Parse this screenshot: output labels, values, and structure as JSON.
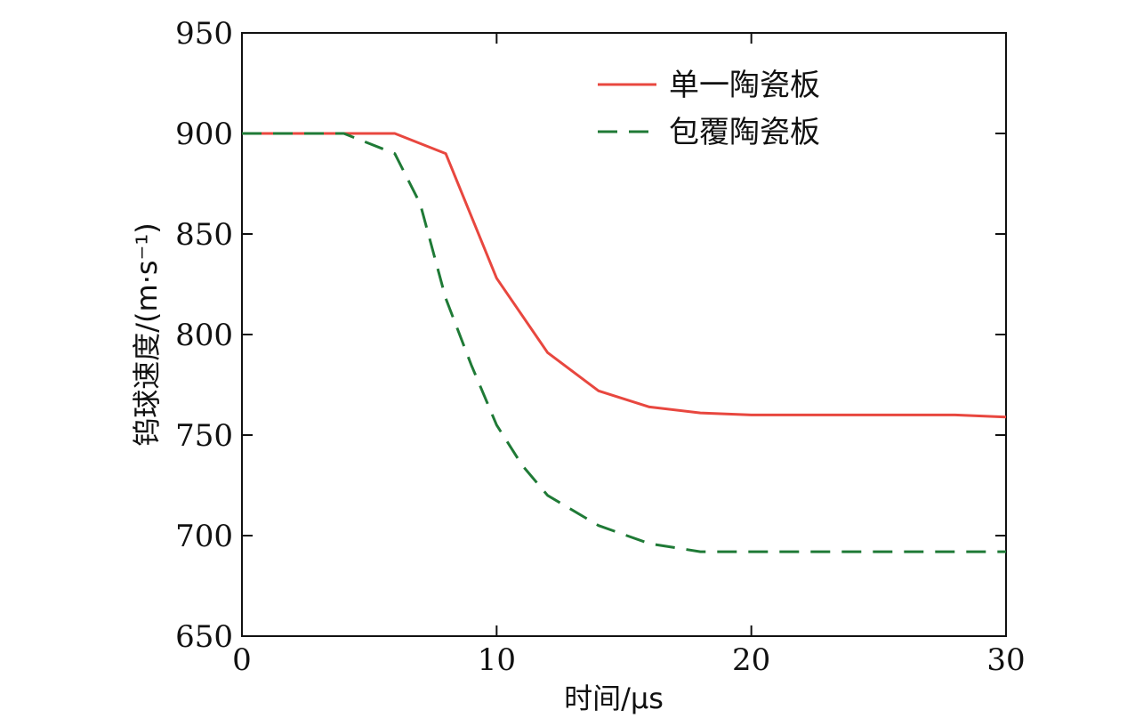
{
  "chart_data": {
    "type": "line",
    "xlabel": "时间/μs",
    "ylabel": "钨球速度/(m·s⁻¹)",
    "xlim": [
      0,
      30
    ],
    "ylim": [
      650,
      950
    ],
    "xticks": [
      0,
      10,
      20,
      30
    ],
    "yticks": [
      650,
      700,
      750,
      800,
      850,
      900,
      950
    ],
    "grid": false,
    "legend_position": "top-right",
    "series": [
      {
        "name": "单一陶瓷板",
        "color": "#e8473f",
        "line_style": "solid",
        "x": [
          0,
          2,
          4,
          6,
          8,
          10,
          12,
          14,
          16,
          18,
          20,
          22,
          24,
          26,
          28,
          30
        ],
        "y": [
          900,
          900,
          900,
          900,
          890,
          828,
          791,
          772,
          764,
          761,
          760,
          760,
          760,
          760,
          760,
          759
        ]
      },
      {
        "name": "包覆陶瓷板",
        "color": "#1f7a36",
        "line_style": "dashed",
        "x": [
          0,
          2,
          4,
          6,
          7,
          8,
          9,
          10,
          11,
          12,
          14,
          16,
          18,
          20,
          22,
          24,
          26,
          28,
          30
        ],
        "y": [
          900,
          900,
          900,
          890,
          865,
          818,
          785,
          755,
          735,
          720,
          705,
          696,
          692,
          692,
          692,
          692,
          692,
          692,
          692
        ]
      }
    ]
  }
}
